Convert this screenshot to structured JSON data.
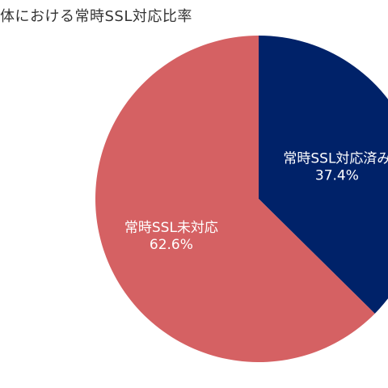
{
  "chart_data": {
    "type": "pie",
    "title": "体における常時SSL対応比率",
    "slices": [
      {
        "label": "常時SSL対応済み",
        "value": 37.4,
        "value_label": "37.4%",
        "color": "#002269"
      },
      {
        "label": "常時SSL未対応",
        "value": 62.6,
        "value_label": "62.6%",
        "color": "#d56163"
      }
    ],
    "start": "12 o'clock",
    "direction": "clockwise",
    "legend": "none"
  }
}
